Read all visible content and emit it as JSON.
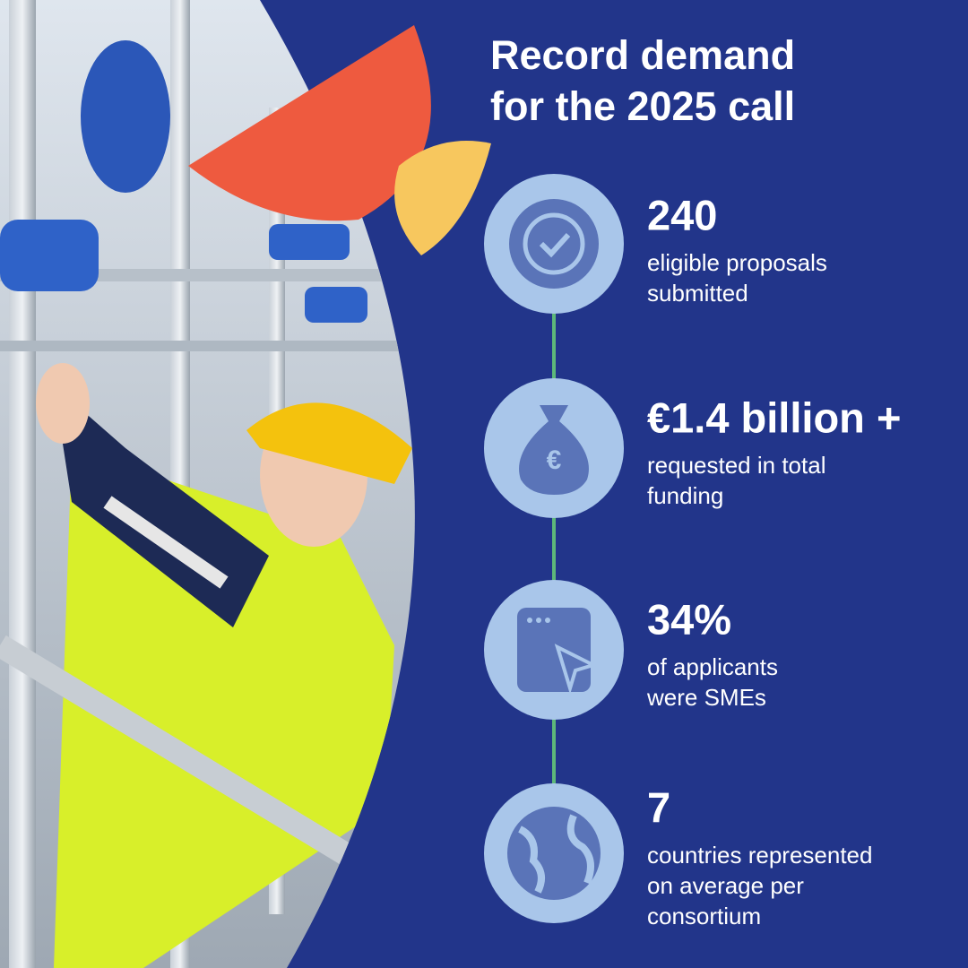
{
  "title": [
    "Record demand",
    "for the 2025 call"
  ],
  "stats": [
    {
      "value": "240",
      "lines": [
        "eligible proposals",
        "submitted"
      ]
    },
    {
      "value": "€1.4 billion +",
      "lines": [
        "requested in total",
        "funding"
      ]
    },
    {
      "value": "34%",
      "lines": [
        "of applicants",
        "were SMEs"
      ]
    },
    {
      "value": "7",
      "lines": [
        "countries represented",
        "on average per",
        "consortium"
      ]
    }
  ]
}
